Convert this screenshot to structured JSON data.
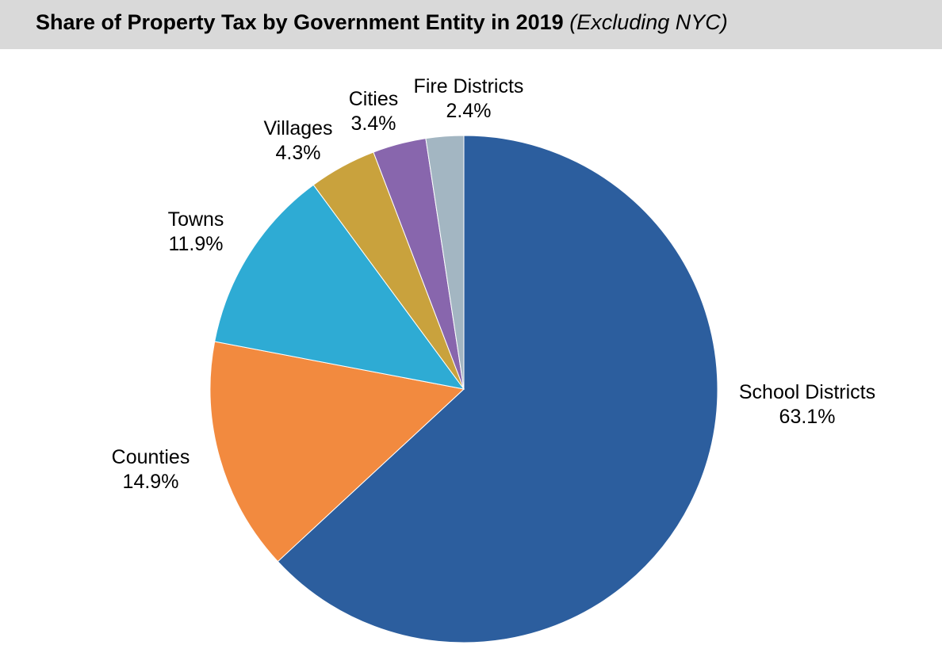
{
  "title": {
    "main": "Share of Property Tax by Government Entity in 2019",
    "sub": "(Excluding NYC)"
  },
  "chart_data": {
    "type": "pie",
    "title": "Share of Property Tax by Government Entity in 2019 (Excluding NYC)",
    "start": "12 o'clock",
    "direction": "clockwise",
    "slices": [
      {
        "label": "School Districts",
        "value": 63.1,
        "value_label": "63.1%",
        "color": "#2c5e9e"
      },
      {
        "label": "Counties",
        "value": 14.9,
        "value_label": "14.9%",
        "color": "#f28a3f"
      },
      {
        "label": "Towns",
        "value": 11.9,
        "value_label": "11.9%",
        "color": "#2eabd4"
      },
      {
        "label": "Villages",
        "value": 4.3,
        "value_label": "4.3%",
        "color": "#c9a23d"
      },
      {
        "label": "Cities",
        "value": 3.4,
        "value_label": "3.4%",
        "color": "#8866ad"
      },
      {
        "label": "Fire Districts",
        "value": 2.4,
        "value_label": "2.4%",
        "color": "#a3b6c2"
      }
    ]
  }
}
